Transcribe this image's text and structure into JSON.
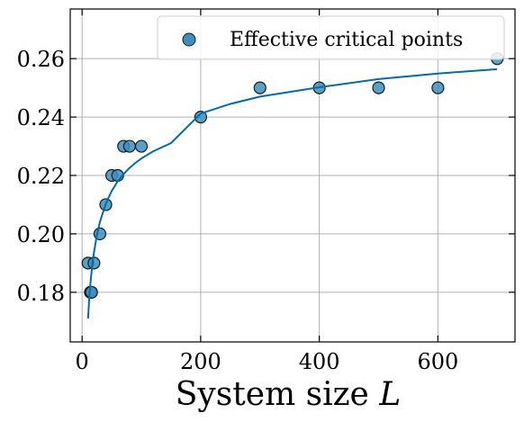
{
  "chart_data": {
    "type": "scatter",
    "title": "",
    "xlabel": "System size",
    "xlabel_symbol": "L",
    "ylabel": "",
    "xlim": [
      -20,
      730
    ],
    "ylim": [
      0.163,
      0.277
    ],
    "xticks": [
      0,
      200,
      400,
      600
    ],
    "xtick_labels": [
      "0",
      "200",
      "400",
      "600"
    ],
    "yticks": [
      0.18,
      0.2,
      0.22,
      0.24,
      0.26
    ],
    "ytick_labels": [
      "0.18",
      "0.20",
      "0.22",
      "0.24",
      "0.26"
    ],
    "grid": true,
    "legend_position": "top-right",
    "series": [
      {
        "name": "Effective critical points",
        "kind": "scatter",
        "color": "#3a8fc0",
        "x": [
          10,
          14,
          16,
          20,
          30,
          40,
          50,
          60,
          70,
          80,
          100,
          200,
          300,
          400,
          500,
          600,
          700
        ],
        "y": [
          0.19,
          0.18,
          0.18,
          0.19,
          0.2,
          0.21,
          0.22,
          0.22,
          0.23,
          0.23,
          0.23,
          0.24,
          0.25,
          0.25,
          0.25,
          0.25,
          0.26
        ]
      },
      {
        "kind": "line",
        "color": "#006bb0",
        "x": [
          10,
          12,
          14,
          16,
          18,
          20,
          25,
          30,
          40,
          50,
          60,
          70,
          80,
          90,
          100,
          120,
          150,
          200,
          250,
          300,
          400,
          500,
          600,
          700
        ],
        "y": [
          0.171,
          0.178,
          0.183,
          0.187,
          0.1905,
          0.1935,
          0.1995,
          0.204,
          0.2103,
          0.2147,
          0.218,
          0.2205,
          0.2226,
          0.2243,
          0.2258,
          0.2283,
          0.2311,
          0.2412,
          0.2445,
          0.247,
          0.2502,
          0.253,
          0.2549,
          0.2564
        ]
      }
    ]
  }
}
